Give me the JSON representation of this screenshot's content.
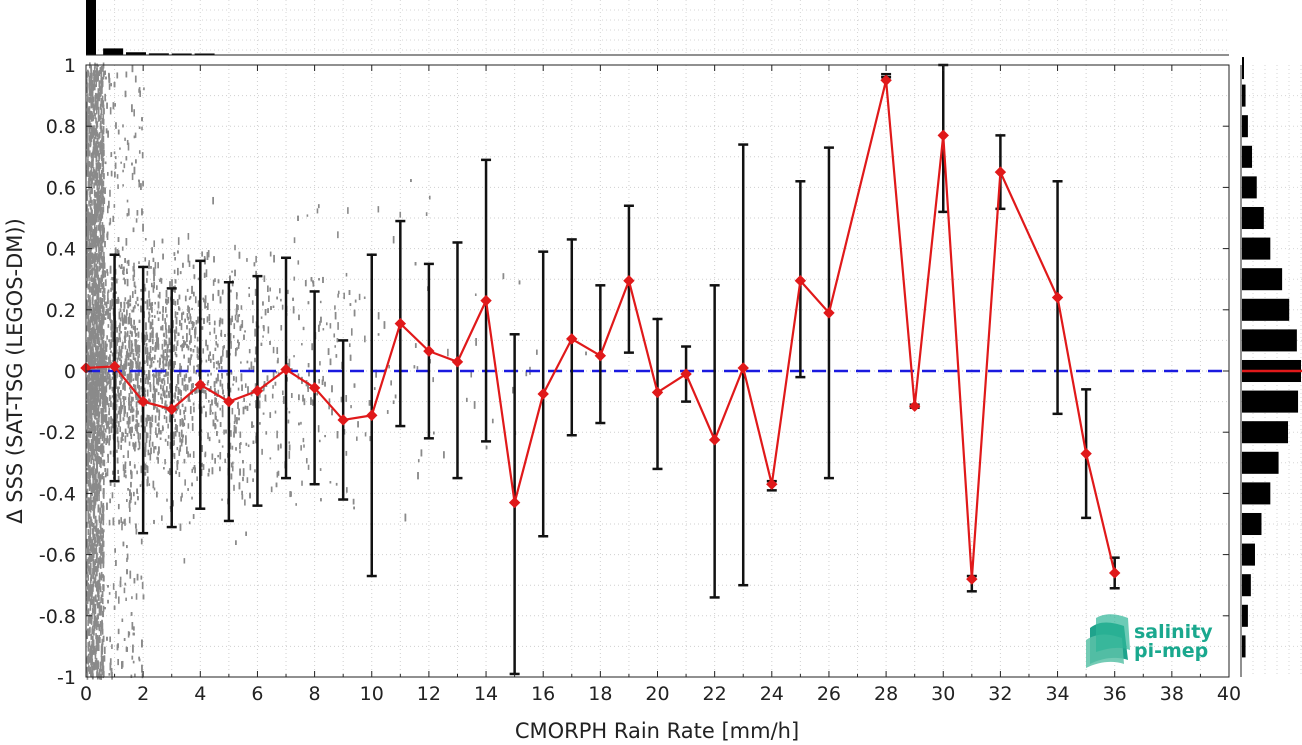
{
  "chart_data": {
    "type": "scatter",
    "xlabel": "CMORPH Rain Rate [mm/h]",
    "ylabel": "Δ SSS (SAT-TSG (LEGOS-DM))",
    "xlim": [
      0,
      40
    ],
    "ylim": [
      -1,
      1
    ],
    "x_ticks": [
      "0",
      "2",
      "4",
      "6",
      "8",
      "10",
      "12",
      "14",
      "16",
      "18",
      "20",
      "22",
      "24",
      "26",
      "28",
      "30",
      "32",
      "34",
      "36",
      "38",
      "40"
    ],
    "y_ticks": [
      "1",
      "0.8",
      "0.6",
      "0.4",
      "0.2",
      "0",
      "-0.2",
      "-0.4",
      "-0.6",
      "-0.8",
      "-1"
    ],
    "grid": true,
    "reference_line": {
      "y": 0,
      "style": "dashed",
      "color": "#1a1adf"
    },
    "median_series": {
      "color": "#e0191a",
      "marker": "diamond",
      "x": [
        0,
        1,
        2,
        3,
        4,
        5,
        6,
        7,
        8,
        9,
        10,
        11,
        12,
        13,
        14,
        15,
        16,
        17,
        18,
        19,
        20,
        21,
        22,
        23,
        24,
        25,
        26,
        28,
        29,
        30,
        31,
        32,
        34,
        35,
        36
      ],
      "y": [
        0.01,
        0.015,
        -0.1,
        -0.125,
        -0.045,
        -0.1,
        -0.065,
        0.005,
        -0.055,
        -0.16,
        -0.145,
        0.155,
        0.065,
        0.03,
        0.23,
        -0.43,
        -0.075,
        0.105,
        0.05,
        0.295,
        -0.07,
        -0.01,
        -0.225,
        0.01,
        -0.37,
        0.295,
        0.19,
        0.95,
        -0.115,
        0.77,
        -0.68,
        0.65,
        0.24,
        -0.27,
        -0.66
      ]
    },
    "error_bars": {
      "color": "#111111",
      "x": [
        1,
        2,
        3,
        4,
        5,
        6,
        7,
        8,
        9,
        10,
        11,
        12,
        13,
        14,
        15,
        16,
        17,
        18,
        19,
        20,
        21,
        22,
        23,
        24,
        25,
        26,
        28,
        29,
        30,
        31,
        32,
        34,
        35,
        36
      ],
      "low": [
        -0.36,
        -0.53,
        -0.51,
        -0.45,
        -0.49,
        -0.44,
        -0.35,
        -0.37,
        -0.42,
        -0.67,
        -0.18,
        -0.22,
        -0.35,
        -0.23,
        -0.99,
        -0.54,
        -0.21,
        -0.17,
        0.06,
        -0.32,
        -0.1,
        -0.74,
        -0.7,
        -0.39,
        -0.02,
        -0.35,
        0.96,
        -0.12,
        0.52,
        -0.72,
        0.53,
        -0.14,
        -0.48,
        -0.71
      ],
      "high": [
        0.38,
        0.34,
        0.27,
        0.36,
        0.29,
        0.31,
        0.37,
        0.26,
        0.1,
        0.38,
        0.49,
        0.35,
        0.42,
        0.69,
        0.12,
        0.39,
        0.43,
        0.28,
        0.54,
        0.17,
        0.08,
        0.28,
        0.74,
        -0.36,
        0.62,
        0.73,
        0.97,
        -0.11,
        1.0,
        -0.67,
        0.77,
        0.62,
        -0.06,
        -0.61
      ]
    },
    "scatter_color": "#8a8a8a",
    "top_histogram": {
      "color": "#000000",
      "relative_counts": [
        1.0,
        0.12,
        0.05,
        0.03,
        0.02,
        0.01
      ]
    },
    "side_histogram": {
      "color": "#000000",
      "median_line_color": "#e0191a",
      "y": [
        0.99,
        0.9,
        0.8,
        0.7,
        0.6,
        0.5,
        0.4,
        0.3,
        0.2,
        0.1,
        0.0,
        -0.1,
        -0.2,
        -0.3,
        -0.4,
        -0.5,
        -0.6,
        -0.7,
        -0.8,
        -0.9
      ],
      "relative_counts": [
        0.02,
        0.06,
        0.1,
        0.17,
        0.25,
        0.37,
        0.48,
        0.68,
        0.8,
        0.93,
        1.0,
        0.95,
        0.78,
        0.62,
        0.48,
        0.33,
        0.22,
        0.15,
        0.1,
        0.06
      ]
    }
  },
  "logo": {
    "line1": "salinity",
    "line2": "pi-mep"
  }
}
